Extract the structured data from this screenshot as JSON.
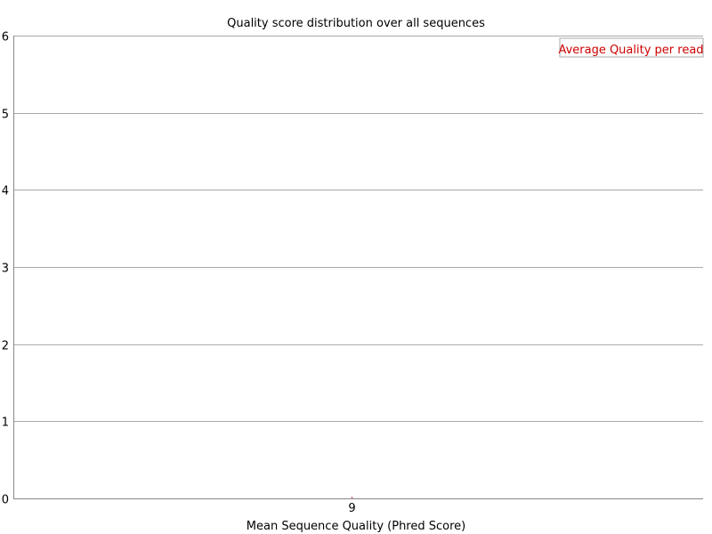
{
  "chart_data": {
    "type": "line",
    "title": "Quality score distribution over all sequences",
    "xlabel": "Mean Sequence Quality (Phred Score)",
    "ylabel": "",
    "categories": [
      "9"
    ],
    "x_tick_labels": [
      "9"
    ],
    "y_tick_labels": [
      "0",
      "1",
      "2",
      "3",
      "4",
      "5",
      "6"
    ],
    "ylim": [
      0,
      6
    ],
    "grid": true,
    "legend_position": "top-right",
    "series": [
      {
        "name": "Average Quality per read",
        "color": "#cc0000",
        "values": [
          0
        ]
      }
    ]
  },
  "colors": {
    "background": "#ffffff",
    "gridline": "#aaaaaa",
    "axis": "#888888",
    "text": "#000000",
    "legend_border": "#aaaaaa"
  }
}
